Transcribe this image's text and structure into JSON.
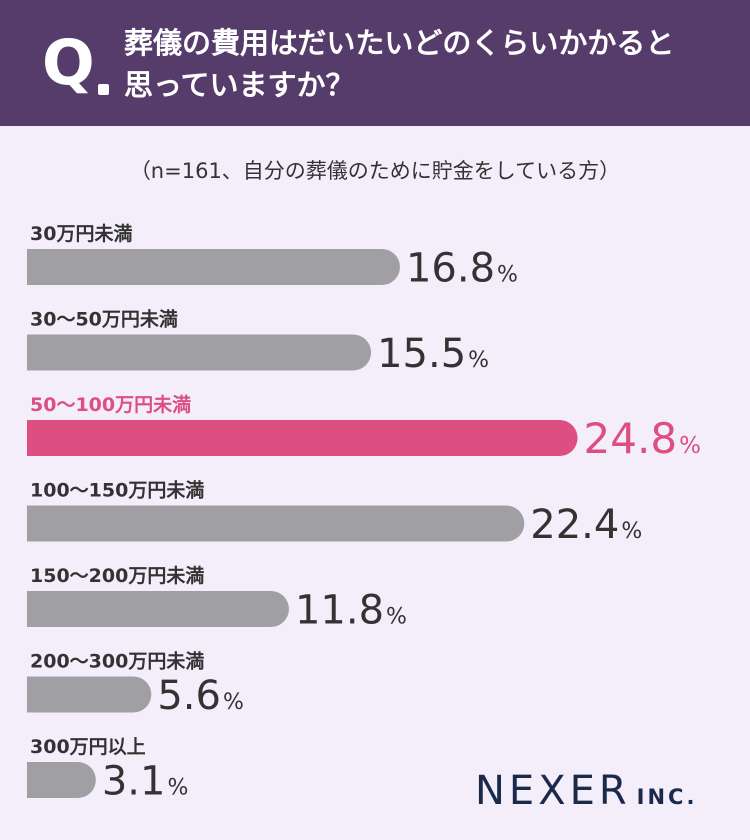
{
  "header": {
    "q_mark": "Q",
    "question_line1": "葬儀の費用はだいたいどのくらいかかると",
    "question_line2": "思っていますか？"
  },
  "note": "（n=161、自分の葬儀のために貯金をしている方）",
  "colors": {
    "header_bg": "#563c6a",
    "background": "#f4eefb",
    "bar": "#a0a0a4",
    "highlight": "#dc4f80",
    "value_text": "#333333"
  },
  "chart_data": {
    "type": "bar",
    "orientation": "horizontal",
    "unit": "%",
    "categories": [
      "30万円未満",
      "30〜50万円未満",
      "50〜100万円未満",
      "100〜150万円未満",
      "150〜200万円未満",
      "200〜300万円未満",
      "300万円以上"
    ],
    "values": [
      16.8,
      15.5,
      24.8,
      22.4,
      11.8,
      5.6,
      3.1
    ],
    "highlight_index": 2
  },
  "brand": {
    "name": "NEXER",
    "suffix": "INC."
  }
}
